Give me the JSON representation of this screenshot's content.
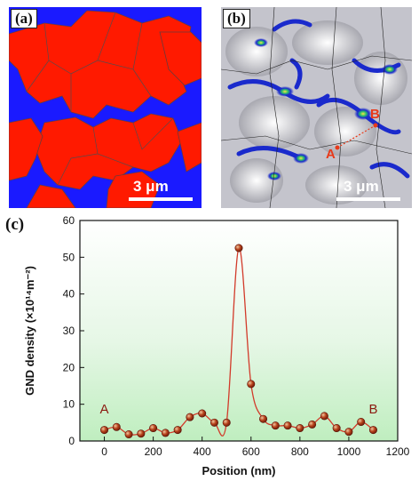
{
  "panels": {
    "a": {
      "label": "(a)",
      "scale_text": "3 μm",
      "colors": {
        "phase_red": "#ff1a00",
        "phase_blue": "#1a1aff",
        "boundary": "#555555"
      }
    },
    "b": {
      "label": "(b)",
      "scale_text": "3 μm",
      "marker_a": "A",
      "marker_b": "B",
      "marker_color": "#e83a1a"
    },
    "c": {
      "label": "(c)"
    }
  },
  "chart_data": {
    "type": "line",
    "xlabel": "Position (nm)",
    "ylabel": "GND density (×10¹⁴m⁻²)",
    "xlim": [
      -100,
      1200
    ],
    "ylim": [
      0,
      60
    ],
    "x_ticks": [
      0,
      200,
      400,
      600,
      800,
      1000,
      1200
    ],
    "y_ticks": [
      0,
      10,
      20,
      30,
      40,
      50,
      60
    ],
    "grid": false,
    "background": "green-to-white vertical gradient",
    "line_color": "#d23a2a",
    "marker_color": "#8b1a10",
    "annotations": [
      {
        "text": "A",
        "x": 0,
        "y": 7.5
      },
      {
        "text": "B",
        "x": 1100,
        "y": 7.5
      }
    ],
    "x": [
      0,
      50,
      100,
      150,
      200,
      250,
      300,
      350,
      400,
      450,
      500,
      550,
      600,
      650,
      700,
      750,
      800,
      850,
      900,
      950,
      1000,
      1050,
      1100
    ],
    "y": [
      3,
      3.8,
      1.8,
      2,
      3.5,
      2.2,
      3,
      6.5,
      7.5,
      5,
      5,
      52.5,
      15.5,
      6,
      4.2,
      4.2,
      3.5,
      4.5,
      6.8,
      3.5,
      2.5,
      5.2,
      3
    ]
  }
}
